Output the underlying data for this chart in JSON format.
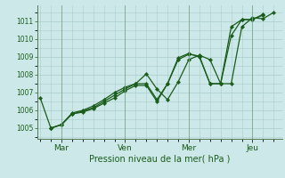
{
  "bg_color": "#cce8e8",
  "grid_color": "#aacccc",
  "line_color": "#1a5c1a",
  "marker_color": "#1a5c1a",
  "xlabel": "Pression niveau de la mer( hPa )",
  "ylim": [
    1004.4,
    1011.9
  ],
  "yticks": [
    1005,
    1006,
    1007,
    1008,
    1009,
    1010,
    1011
  ],
  "day_labels": [
    "Mar",
    "Ven",
    "Mer",
    "Jeu"
  ],
  "day_positions": [
    1.0,
    4.0,
    7.0,
    10.0
  ],
  "xlim": [
    -0.15,
    11.4
  ],
  "series1": [
    [
      0.0,
      1006.7
    ],
    [
      0.5,
      1005.0
    ],
    [
      1.0,
      1005.2
    ],
    [
      1.5,
      1005.85
    ],
    [
      2.0,
      1006.0
    ],
    [
      2.5,
      1006.25
    ],
    [
      3.0,
      1006.6
    ],
    [
      3.5,
      1007.0
    ],
    [
      4.0,
      1007.3
    ],
    [
      4.5,
      1007.5
    ],
    [
      5.0,
      1008.05
    ],
    [
      5.5,
      1007.2
    ],
    [
      6.0,
      1006.6
    ],
    [
      6.5,
      1007.6
    ],
    [
      7.0,
      1008.85
    ],
    [
      7.5,
      1009.1
    ],
    [
      8.0,
      1008.85
    ],
    [
      8.5,
      1007.5
    ],
    [
      9.0,
      1007.5
    ],
    [
      9.5,
      1010.7
    ],
    [
      10.0,
      1011.2
    ],
    [
      10.5,
      1011.15
    ],
    [
      11.0,
      1011.5
    ]
  ],
  "series2": [
    [
      0.5,
      1005.0
    ],
    [
      1.0,
      1005.2
    ],
    [
      1.5,
      1005.8
    ],
    [
      2.0,
      1005.95
    ],
    [
      2.5,
      1006.15
    ],
    [
      3.0,
      1006.5
    ],
    [
      3.5,
      1006.85
    ],
    [
      4.0,
      1007.2
    ],
    [
      4.5,
      1007.5
    ],
    [
      5.0,
      1007.5
    ],
    [
      5.5,
      1006.6
    ],
    [
      6.0,
      1007.5
    ],
    [
      6.5,
      1008.85
    ],
    [
      7.0,
      1009.15
    ],
    [
      7.5,
      1009.05
    ],
    [
      8.0,
      1007.5
    ],
    [
      8.5,
      1007.5
    ],
    [
      9.0,
      1010.2
    ],
    [
      9.5,
      1011.1
    ],
    [
      10.0,
      1011.1
    ],
    [
      10.5,
      1011.35
    ]
  ],
  "series3": [
    [
      0.5,
      1005.0
    ],
    [
      1.0,
      1005.2
    ],
    [
      1.5,
      1005.8
    ],
    [
      2.0,
      1005.9
    ],
    [
      2.5,
      1006.1
    ],
    [
      3.0,
      1006.4
    ],
    [
      3.5,
      1006.7
    ],
    [
      4.0,
      1007.1
    ],
    [
      4.5,
      1007.4
    ],
    [
      5.0,
      1007.4
    ],
    [
      5.5,
      1006.5
    ],
    [
      6.0,
      1007.5
    ],
    [
      6.5,
      1008.95
    ],
    [
      7.0,
      1009.2
    ],
    [
      7.5,
      1009.0
    ],
    [
      8.0,
      1007.5
    ],
    [
      8.5,
      1007.5
    ],
    [
      9.0,
      1010.7
    ],
    [
      9.5,
      1011.1
    ],
    [
      10.0,
      1011.1
    ],
    [
      10.5,
      1011.4
    ]
  ]
}
